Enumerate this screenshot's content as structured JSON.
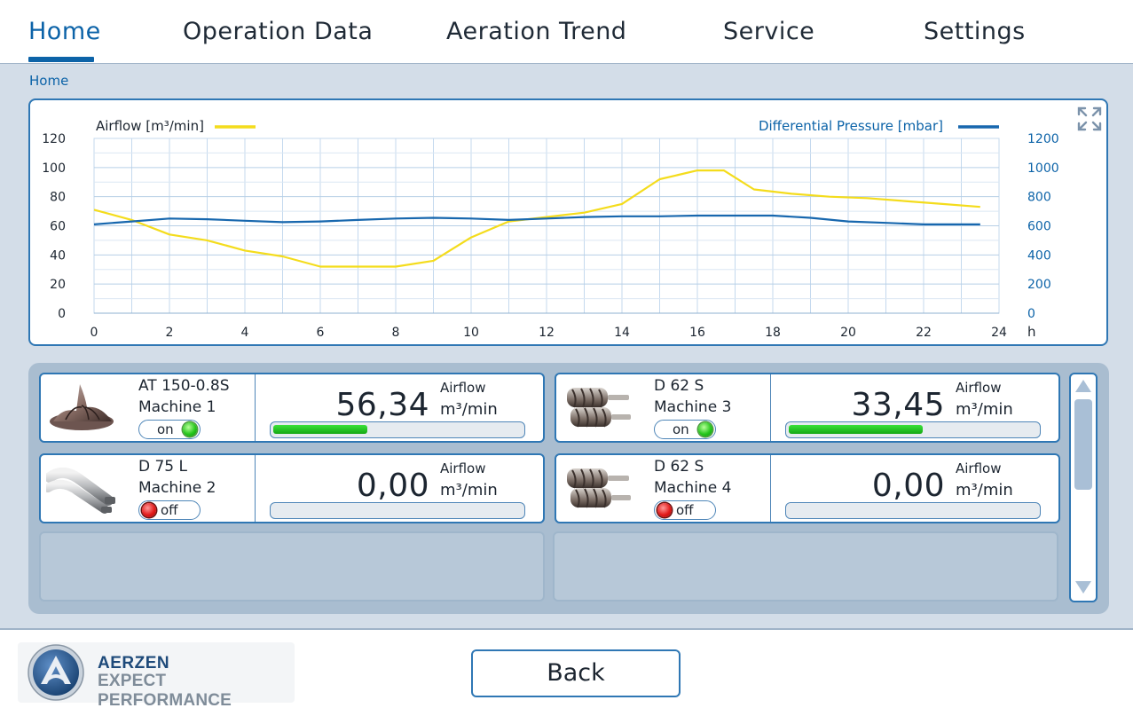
{
  "nav": {
    "tabs": [
      {
        "label": "Home",
        "active": true
      },
      {
        "label": "Operation Data",
        "active": false
      },
      {
        "label": "Aeration Trend",
        "active": false
      },
      {
        "label": "Service",
        "active": false
      },
      {
        "label": "Settings",
        "active": false
      }
    ]
  },
  "breadcrumb": "Home",
  "chart_data": {
    "type": "line",
    "x_unit": "h",
    "xlim": [
      0,
      24
    ],
    "x_ticks": [
      "0",
      "2",
      "4",
      "6",
      "8",
      "10",
      "12",
      "14",
      "16",
      "18",
      "20",
      "22",
      "24"
    ],
    "left_axis": {
      "ylim": [
        0,
        120
      ],
      "ticks": [
        "0",
        "20",
        "40",
        "60",
        "80",
        "100",
        "120"
      ]
    },
    "right_axis": {
      "ylim": [
        0,
        1200
      ],
      "ticks": [
        "0",
        "200",
        "400",
        "600",
        "800",
        "1000",
        "1200"
      ]
    },
    "grid": true,
    "series": [
      {
        "name": "Airflow [m³/min]",
        "axis": "left",
        "color": "#f4dc1c",
        "x": [
          0,
          1,
          2,
          3,
          4,
          5,
          6,
          7,
          8,
          9,
          10,
          11,
          12,
          13,
          14,
          15,
          16,
          16.7,
          17.5,
          18.5,
          19.5,
          20.5,
          21.5,
          22.5,
          23.5
        ],
        "values": [
          71,
          64,
          54,
          50,
          43,
          39,
          32,
          32,
          32,
          36,
          52,
          63,
          66,
          69,
          75,
          92,
          98,
          98,
          85,
          82,
          80,
          79,
          77,
          75,
          73
        ]
      },
      {
        "name": "Differential Pressure [mbar]",
        "axis": "right",
        "color": "#1767ae",
        "x": [
          0,
          1,
          2,
          3,
          4,
          5,
          6,
          7,
          8,
          9,
          10,
          11,
          12,
          13,
          14,
          15,
          16,
          17,
          18,
          19,
          20,
          21,
          22,
          23,
          23.5
        ],
        "values": [
          610,
          630,
          650,
          645,
          635,
          625,
          630,
          640,
          650,
          655,
          650,
          640,
          650,
          660,
          665,
          665,
          670,
          670,
          670,
          655,
          630,
          620,
          610,
          610,
          610
        ]
      }
    ]
  },
  "machines": [
    {
      "model": "AT 150-0.8S",
      "name": "Machine 1",
      "status": "on",
      "value": "56,34",
      "flow_label": "Airflow",
      "unit": "m³/min",
      "fraction": 0.38
    },
    {
      "model": "D 62 S",
      "name": "Machine 3",
      "status": "on",
      "value": "33,45",
      "flow_label": "Airflow",
      "unit": "m³/min",
      "fraction": 0.54
    },
    {
      "model": "D 75 L",
      "name": "Machine 2",
      "status": "off",
      "value": "0,00",
      "flow_label": "Airflow",
      "unit": "m³/min",
      "fraction": 0
    },
    {
      "model": "D 62 S",
      "name": "Machine 4",
      "status": "off",
      "value": "0,00",
      "flow_label": "Airflow",
      "unit": "m³/min",
      "fraction": 0
    }
  ],
  "logo": {
    "line1": "AERZEN",
    "line2": "EXPECT PERFORMANCE"
  },
  "back_label": "Back"
}
